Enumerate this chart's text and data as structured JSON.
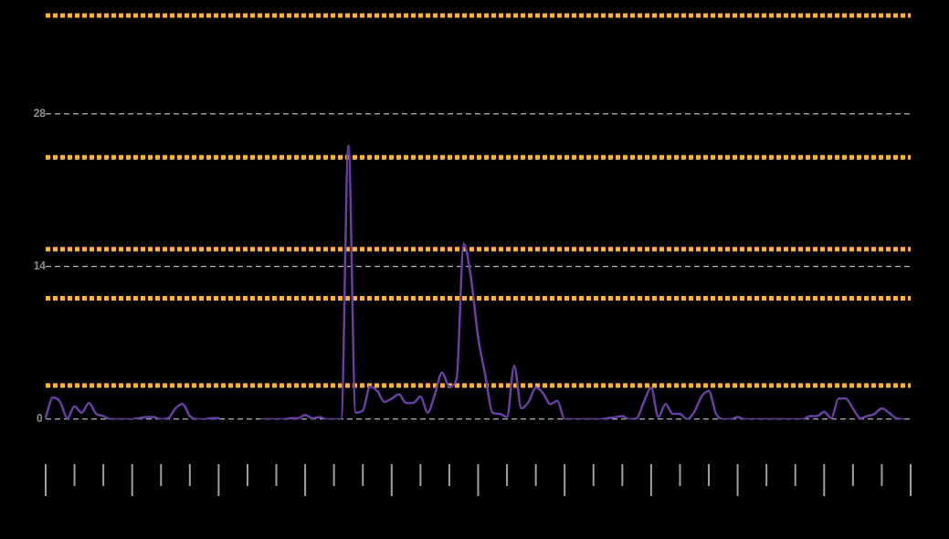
{
  "chart_data": {
    "type": "line",
    "categories": [
      null,
      null,
      null,
      null,
      null,
      null,
      null,
      null,
      null,
      null,
      null,
      null,
      null,
      null,
      null,
      null,
      null,
      null,
      null,
      null,
      null,
      null,
      null,
      null,
      null,
      null,
      null,
      null,
      null,
      null,
      null,
      null,
      null,
      null,
      null,
      null,
      null,
      null,
      null,
      null,
      null,
      null,
      null,
      null,
      null,
      null,
      null,
      null,
      null,
      null,
      null,
      null,
      null,
      null,
      null,
      null,
      null,
      null,
      null,
      null,
      null,
      null,
      null,
      null,
      null,
      null,
      null,
      null,
      null,
      null,
      null,
      null,
      null,
      null,
      null,
      null,
      null,
      null,
      null,
      null,
      null,
      null,
      null,
      null,
      null,
      null,
      null,
      null,
      null,
      null,
      null,
      null,
      null,
      null,
      null,
      null,
      null,
      null,
      null,
      null,
      null,
      null,
      null,
      null,
      null,
      null,
      null,
      null,
      null,
      null,
      null,
      null,
      null,
      null,
      null,
      null,
      null,
      null,
      null,
      null,
      null
    ],
    "series": [
      {
        "color": "#6a3fa5",
        "values": [
          0.2,
          2.0,
          1.6,
          0.1,
          1.2,
          0.6,
          1.5,
          0.5,
          0.3,
          0,
          0,
          0,
          0,
          0.1,
          0.2,
          0.2,
          0,
          0.1,
          1.0,
          1.4,
          0.3,
          0,
          0,
          0.1,
          0.1,
          null,
          null,
          null,
          null,
          null,
          null,
          null,
          null,
          null,
          null,
          null,
          null,
          null,
          null,
          null,
          null,
          null,
          null,
          null,
          null,
          null,
          null,
          null,
          null,
          null,
          null,
          null,
          null,
          null,
          null,
          null,
          null,
          null,
          null,
          null,
          null,
          null,
          null,
          null,
          null,
          null,
          null,
          null,
          null,
          null,
          null,
          null,
          null,
          null,
          null,
          null,
          null,
          null,
          null,
          null,
          null,
          null,
          null,
          null,
          null,
          null,
          null,
          null,
          null,
          null,
          null,
          null,
          null,
          null,
          null,
          null,
          null,
          null,
          null,
          null,
          null,
          null,
          null,
          null,
          null,
          null,
          null,
          null,
          null,
          null,
          null,
          null,
          null,
          null,
          null,
          null,
          null,
          null,
          null,
          null,
          null
        ]
      },
      {
        "color": "#6a3fa5",
        "values": [
          null,
          null,
          null,
          null,
          null,
          null,
          null,
          null,
          null,
          null,
          null,
          null,
          null,
          null,
          null,
          null,
          null,
          null,
          null,
          null,
          null,
          null,
          null,
          null,
          null,
          null,
          null,
          null,
          null,
          null,
          0,
          0,
          0,
          0,
          0.1,
          0.1,
          0.4,
          0.1,
          0.2,
          0,
          0,
          0,
          25.1,
          0.6,
          0.8,
          3.0,
          2.6,
          1.6,
          1.9,
          2.3,
          1.5,
          1.5,
          2.1,
          0.6,
          2.3,
          4.3,
          3.0,
          3.7,
          16.1,
          13,
          7.5,
          4.0,
          0.6,
          0.5,
          0.2,
          4.9,
          1.0,
          1.6,
          2.9,
          2.4,
          1.4,
          1.7,
          0,
          0,
          0,
          0,
          0,
          0,
          0.1,
          0.2,
          0.3,
          0,
          0.1,
          1.6,
          2.9,
          0.2,
          1.4,
          0.5,
          0.5,
          0,
          0.7,
          2.1,
          2.6,
          0.5,
          0,
          0,
          0.2,
          0,
          0,
          0,
          0,
          0,
          0,
          0,
          0,
          0,
          0.3,
          0.3,
          0.7,
          0.1,
          1.9,
          1.9,
          1.0,
          0.1,
          0.3,
          0.5,
          1.0,
          0.6,
          0.1,
          0,
          null
        ]
      }
    ],
    "ylim": [
      0,
      37
    ],
    "yticks": [
      0,
      14,
      28
    ],
    "grid": "y",
    "legend": false,
    "marker": "none",
    "line_style": "solid",
    "tick_labels": "y",
    "ref_lines": [
      {
        "axis": "y",
        "value": 37,
        "color": "#f7b244",
        "line_style": "dotted"
      },
      {
        "axis": "y",
        "value": 24,
        "color": "#f7b244",
        "line_style": "dotted"
      },
      {
        "axis": "y",
        "value": 15.6,
        "color": "#f7b244",
        "line_style": "dotted"
      },
      {
        "axis": "y",
        "value": 11.1,
        "color": "#f7b244",
        "line_style": "dotted"
      },
      {
        "axis": "y",
        "value": 3.1,
        "color": "#f7b244",
        "line_style": "dotted"
      }
    ]
  }
}
